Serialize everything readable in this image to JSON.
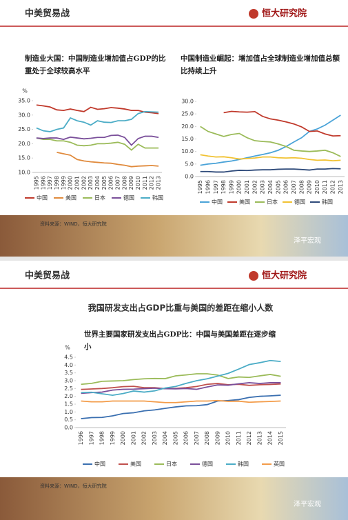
{
  "slides": [
    {
      "header": "中美贸易战",
      "logo": "恒大研究院",
      "source": "资料来源：WIND，恒大研究院",
      "watermark": "泽平宏观"
    },
    {
      "header": "中美贸易战",
      "logo": "恒大研究院",
      "headline": "我国研发支出占GDP比重与美国的差距在缩小人数",
      "source": "资料来源：WIND，恒大研究院",
      "watermark": "泽平宏观"
    }
  ],
  "chart_data": [
    {
      "type": "line",
      "title": "制造业大国：中国制造业增加值占GDP的比重处于全球较高水平",
      "y_label": "%",
      "legend": "bottom",
      "categories": [
        "1995",
        "1996",
        "1997",
        "1998",
        "1999",
        "2000",
        "2001",
        "2002",
        "2003",
        "2004",
        "2005",
        "2006",
        "2007",
        "2008",
        "2009",
        "2010",
        "2011",
        "2012",
        "2013"
      ],
      "ylim": [
        10,
        35
      ],
      "yticks": [
        {
          "value": 10,
          "label": "10.0"
        },
        {
          "value": 15,
          "label": "15.0"
        },
        {
          "value": 20,
          "label": "20.0"
        },
        {
          "value": 25,
          "label": "25.0"
        },
        {
          "value": 30,
          "label": "30.0"
        },
        {
          "value": 35,
          "label": "35.0"
        }
      ],
      "series": [
        {
          "name": "中国",
          "color": "#c0392b",
          "values": [
            33.5,
            33.2,
            32.8,
            31.8,
            31.6,
            32.1,
            31.6,
            31.2,
            32.7,
            32.0,
            32.2,
            32.6,
            32.4,
            32.1,
            31.6,
            31.6,
            31.0,
            30.8,
            30.5
          ]
        },
        {
          "name": "美国",
          "color": "#e08a3c",
          "values": [
            null,
            null,
            null,
            17,
            16.5,
            16,
            14.5,
            14,
            13.7,
            13.5,
            13.3,
            13.2,
            12.8,
            12.5,
            12,
            12.2,
            12.3,
            12.4,
            12.2
          ]
        },
        {
          "name": "日本",
          "color": "#9bbb59",
          "values": [
            22,
            21.5,
            21.5,
            21,
            21,
            20.5,
            19.5,
            19.3,
            19.5,
            20,
            20,
            20.2,
            20.5,
            19.8,
            17.8,
            19.8,
            18.5,
            18.5,
            18.5
          ]
        },
        {
          "name": "德国",
          "color": "#7a4f9a",
          "values": [
            22,
            21.8,
            22,
            22,
            21.5,
            22.3,
            22,
            21.7,
            21.9,
            22.2,
            22.2,
            22.9,
            23,
            22.2,
            19.5,
            21.8,
            22.6,
            22.6,
            22.2
          ]
        },
        {
          "name": "韩国",
          "color": "#4bacc6",
          "values": [
            25.5,
            24.5,
            24.2,
            25,
            25.5,
            29,
            28,
            27.5,
            26.5,
            28,
            27.5,
            27.4,
            28,
            28,
            28.5,
            30.5,
            31.2,
            31.1,
            31
          ]
        }
      ]
    },
    {
      "type": "line",
      "title": "中国制造业崛起：增加值占全球制造业增加值总额比持续上升",
      "legend": "bottom",
      "categories": [
        "1995",
        "1996",
        "1997",
        "1998",
        "1999",
        "2000",
        "2001",
        "2002",
        "2003",
        "2004",
        "2005",
        "2006",
        "2007",
        "2008",
        "2009",
        "2010",
        "2011",
        "2012",
        "2013"
      ],
      "ylim": [
        0,
        30
      ],
      "yticks": [
        {
          "value": 0,
          "label": "0.0"
        },
        {
          "value": 5,
          "label": "5.0"
        },
        {
          "value": 10,
          "label": "10.0"
        },
        {
          "value": 15,
          "label": "15.0"
        },
        {
          "value": 20,
          "label": "20.0"
        },
        {
          "value": 25,
          "label": "25.0"
        },
        {
          "value": 30,
          "label": "30.0"
        }
      ],
      "series": [
        {
          "name": "中国",
          "color": "#4aa3d8",
          "values": [
            4.5,
            5,
            5.3,
            5.8,
            6.2,
            6.8,
            7.5,
            8.2,
            8.8,
            9.5,
            10.5,
            12,
            13.8,
            15.5,
            18,
            19,
            20.5,
            22.5,
            24.5
          ]
        },
        {
          "name": "美国",
          "color": "#c0392b",
          "values": [
            null,
            null,
            null,
            25.5,
            26,
            25.8,
            25.7,
            25.9,
            24,
            23,
            22.5,
            21.8,
            21,
            19.8,
            18,
            18.2,
            17,
            16.2,
            16.3
          ]
        },
        {
          "name": "日本",
          "color": "#9bbb59",
          "values": [
            20,
            18,
            17,
            16,
            16.8,
            17.2,
            15.5,
            14.3,
            14,
            13.8,
            13,
            12,
            10.5,
            10.2,
            10,
            10.2,
            10.5,
            9.5,
            8
          ]
        },
        {
          "name": "德国",
          "color": "#f1c232",
          "values": [
            8.7,
            8.2,
            7.8,
            7.9,
            7.5,
            7,
            7.2,
            7.4,
            7.8,
            7.8,
            7.5,
            7.4,
            7.5,
            7.3,
            6.8,
            6.5,
            6.6,
            6.3,
            6.5
          ]
        },
        {
          "name": "韩国",
          "color": "#2e4a7a",
          "values": [
            2,
            2,
            1.8,
            1.8,
            2.2,
            2.5,
            2.4,
            2.6,
            2.7,
            2.7,
            2.9,
            3,
            3,
            2.8,
            2.6,
            3,
            3,
            3.2,
            3.1
          ]
        }
      ]
    },
    {
      "type": "line",
      "title": "世界主要国家研发支出占GDP比：中国与美国差距在逐步缩小",
      "y_label": "%",
      "legend": "bottom",
      "categories": [
        "1996",
        "1997",
        "1998",
        "1999",
        "2000",
        "2001",
        "2002",
        "2003",
        "2004",
        "2005",
        "2006",
        "2007",
        "2008",
        "2009",
        "2010",
        "2011",
        "2012",
        "2013",
        "2014",
        "2015"
      ],
      "ylim": [
        0,
        4.5
      ],
      "yticks": [
        {
          "value": 0,
          "label": "0.0"
        },
        0.5,
        {
          "value": 1,
          "label": "1.0"
        },
        1.5,
        {
          "value": 2,
          "label": "2.0"
        },
        2.5,
        {
          "value": 3,
          "label": "3.0"
        },
        3.5,
        {
          "value": 4,
          "label": "4.0"
        },
        4.5
      ],
      "series": [
        {
          "name": "中国",
          "color": "#3a6fb0",
          "values": [
            0.57,
            0.64,
            0.65,
            0.75,
            0.9,
            0.95,
            1.07,
            1.13,
            1.23,
            1.32,
            1.39,
            1.4,
            1.47,
            1.7,
            1.73,
            1.79,
            1.93,
            2.0,
            2.03,
            2.07
          ]
        },
        {
          "name": "美国",
          "color": "#c0504d",
          "values": [
            2.44,
            2.47,
            2.5,
            2.55,
            2.62,
            2.64,
            2.55,
            2.55,
            2.49,
            2.51,
            2.55,
            2.63,
            2.77,
            2.82,
            2.74,
            2.77,
            2.7,
            2.74,
            2.76,
            2.79
          ]
        },
        {
          "name": "日本",
          "color": "#9bbb59",
          "values": [
            2.77,
            2.83,
            2.96,
            2.98,
            3.0,
            3.07,
            3.12,
            3.14,
            3.13,
            3.31,
            3.37,
            3.44,
            3.44,
            3.36,
            3.14,
            3.24,
            3.21,
            3.31,
            3.4,
            3.28
          ]
        },
        {
          "name": "德国",
          "color": "#7a4f9a",
          "values": [
            2.19,
            2.24,
            2.27,
            2.4,
            2.45,
            2.46,
            2.49,
            2.52,
            2.49,
            2.48,
            2.5,
            2.45,
            2.6,
            2.73,
            2.71,
            2.8,
            2.87,
            2.82,
            2.87,
            2.87
          ]
        },
        {
          "name": "韩国",
          "color": "#4bacc6",
          "values": [
            2.24,
            2.26,
            2.16,
            2.07,
            2.18,
            2.34,
            2.27,
            2.35,
            2.53,
            2.63,
            2.83,
            3.0,
            3.12,
            3.29,
            3.47,
            3.74,
            4.03,
            4.15,
            4.29,
            4.23
          ]
        },
        {
          "name": "英国",
          "color": "#f39c4a",
          "values": [
            1.7,
            1.65,
            1.65,
            1.7,
            1.7,
            1.7,
            1.7,
            1.65,
            1.6,
            1.6,
            1.65,
            1.7,
            1.7,
            1.73,
            1.68,
            1.69,
            1.62,
            1.65,
            1.67,
            1.7
          ]
        }
      ]
    }
  ]
}
